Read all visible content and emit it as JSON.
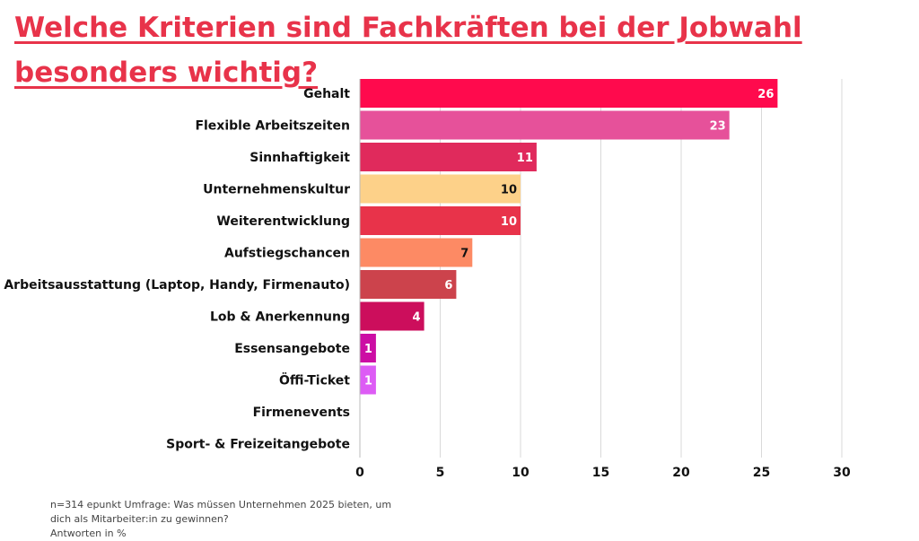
{
  "title": "Welche Kriterien sind Fachkräften bei der Jobwahl besonders wichtig?",
  "chart_data": {
    "type": "bar",
    "orientation": "horizontal",
    "categories": [
      "Gehalt",
      "Flexible Arbeitszeiten",
      "Sinnhaftigkeit",
      "Unternehmenskultur",
      "Weiterentwicklung",
      "Aufstiegschancen",
      "Arbeitsausstattung (Laptop, Handy, Firmenauto)",
      "Lob & Anerkennung",
      "Essensangebote",
      "Öffi-Ticket",
      "Firmenevents",
      "Sport- & Freizeitangebote"
    ],
    "values": [
      26,
      23,
      11,
      10,
      10,
      7,
      6,
      4,
      1,
      1,
      0,
      0
    ],
    "value_labels": [
      "26",
      "23",
      "11",
      "10",
      "10",
      "7",
      "6",
      "4",
      "1",
      "1",
      "",
      ""
    ],
    "colors": [
      "#ff0a4d",
      "#e6519a",
      "#e02a5c",
      "#fdd189",
      "#e8334a",
      "#fd8a64",
      "#cc434c",
      "#cc0e5c",
      "#cc0ea4",
      "#dd5cf5",
      "#cccccc",
      "#cccccc"
    ],
    "label_colors": [
      "#ffffff",
      "#ffffff",
      "#ffffff",
      "#111111",
      "#ffffff",
      "#111111",
      "#ffffff",
      "#ffffff",
      "#ffffff",
      "#ffffff",
      "#ffffff",
      "#ffffff"
    ],
    "xlim": [
      0,
      30
    ],
    "xticks": [
      0,
      5,
      10,
      15,
      20,
      25,
      30
    ],
    "grid": true,
    "xlabel": "",
    "ylabel": ""
  },
  "footnote": {
    "line1": "n=314 epunkt Umfrage: Was müssen Unternehmen 2025 bieten, um",
    "line2": "dich als Mitarbeiter:in zu gewinnen?",
    "line3": "Antworten in %"
  }
}
